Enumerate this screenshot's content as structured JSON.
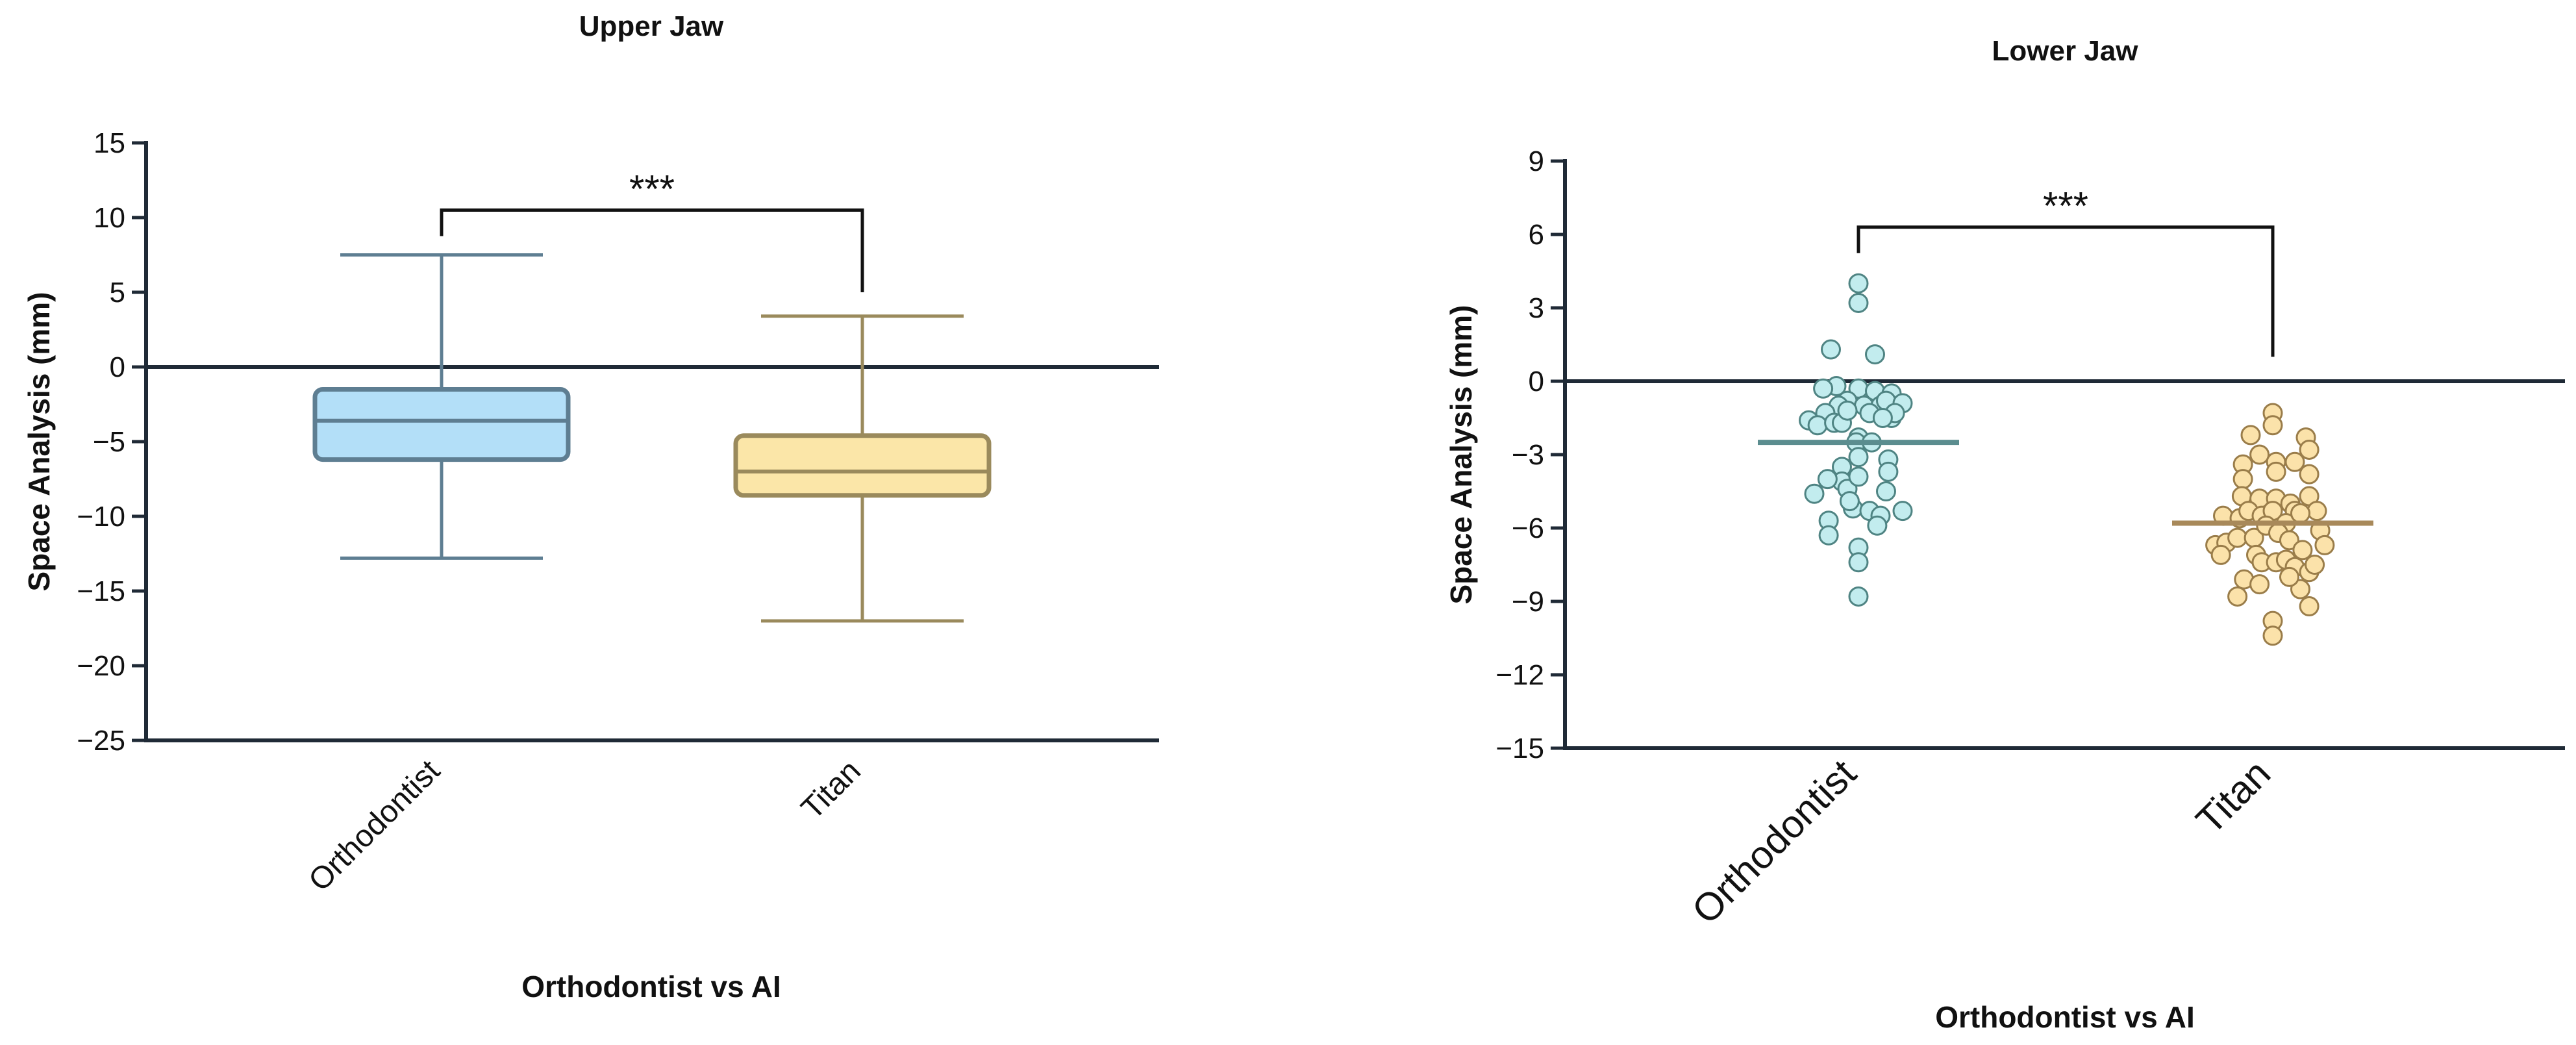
{
  "chart_data": [
    {
      "type": "box",
      "title": "Upper Jaw",
      "xlabel": "Orthodontist vs AI",
      "ylabel": "Space Analysis (mm)",
      "ylim": [
        -25,
        15
      ],
      "yticks": [
        15,
        10,
        5,
        0,
        -5,
        -10,
        -15,
        -20,
        -25
      ],
      "ytick_labels": [
        "15",
        "10",
        "5",
        "0",
        "−5",
        "−10",
        "−15",
        "−20",
        "−25"
      ],
      "categories": [
        "Orthodontist",
        "Titan"
      ],
      "boxes": [
        {
          "name": "Orthodontist",
          "min": -12.8,
          "q1": -6.2,
          "median": -3.6,
          "q3": -1.5,
          "max": 7.5,
          "fill": "#b3dff8",
          "stroke": "#5e7e92"
        },
        {
          "name": "Titan",
          "min": -17.0,
          "q1": -8.6,
          "median": -7.0,
          "q3": -4.6,
          "max": 3.4,
          "fill": "#fbe6a8",
          "stroke": "#9a8a5c"
        }
      ],
      "significance": {
        "label": "***",
        "left_y": 10.5,
        "right_y": 5,
        "top_y": 10.5
      }
    },
    {
      "type": "scatter",
      "title": "Lower Jaw",
      "xlabel": "Orthodontist vs AI",
      "ylabel": "Space Analysis (mm)",
      "ylim": [
        -15,
        9
      ],
      "yticks": [
        9,
        6,
        3,
        0,
        -3,
        -6,
        -9,
        -12,
        -15
      ],
      "ytick_labels": [
        "9",
        "6",
        "3",
        "0",
        "−3",
        "−6",
        "−9",
        "−12",
        "−15"
      ],
      "categories": [
        "Orthodontist",
        "Titan"
      ],
      "series": [
        {
          "name": "Orthodontist",
          "mean": -2.5,
          "fill": "#c2ecee",
          "stroke": "#4f8483",
          "line_color": "#5b8d8f",
          "points": [
            [
              0.0,
              4.0
            ],
            [
              0.0,
              3.2
            ],
            [
              -0.25,
              1.3
            ],
            [
              0.15,
              1.1
            ],
            [
              -0.2,
              -0.2
            ],
            [
              -0.32,
              -0.3
            ],
            [
              0.0,
              -0.3
            ],
            [
              0.15,
              -0.4
            ],
            [
              0.3,
              -0.5
            ],
            [
              -0.1,
              -0.8
            ],
            [
              0.05,
              -1.0
            ],
            [
              0.2,
              -1.0
            ],
            [
              0.25,
              -0.8
            ],
            [
              0.4,
              -0.9
            ],
            [
              -0.18,
              -1.0
            ],
            [
              -0.3,
              -1.3
            ],
            [
              -0.45,
              -1.6
            ],
            [
              -0.37,
              -1.8
            ],
            [
              -0.22,
              -1.7
            ],
            [
              -0.15,
              -1.7
            ],
            [
              -0.1,
              -1.2
            ],
            [
              0.1,
              -1.3
            ],
            [
              0.3,
              -1.5
            ],
            [
              0.33,
              -1.3
            ],
            [
              0.22,
              -1.5
            ],
            [
              0.0,
              -2.3
            ],
            [
              -0.02,
              -2.5
            ],
            [
              0.12,
              -2.5
            ],
            [
              -0.15,
              -3.5
            ],
            [
              0.0,
              -3.1
            ],
            [
              0.27,
              -3.2
            ],
            [
              0.27,
              -3.7
            ],
            [
              -0.15,
              -4.1
            ],
            [
              -0.28,
              -4.0
            ],
            [
              -0.4,
              -4.6
            ],
            [
              -0.1,
              -4.4
            ],
            [
              0.0,
              -3.9
            ],
            [
              -0.05,
              -5.2
            ],
            [
              0.1,
              -5.3
            ],
            [
              0.2,
              -5.5
            ],
            [
              0.25,
              -4.5
            ],
            [
              0.4,
              -5.3
            ],
            [
              0.17,
              -5.9
            ],
            [
              -0.08,
              -4.9
            ],
            [
              -0.27,
              -5.7
            ],
            [
              -0.27,
              -6.3
            ],
            [
              0.0,
              -6.8
            ],
            [
              0.0,
              -7.4
            ],
            [
              0.0,
              -8.8
            ]
          ]
        },
        {
          "name": "Titan",
          "mean": -5.8,
          "fill": "#fbe2aa",
          "stroke": "#9a7d4a",
          "line_color": "#a8895a",
          "points": [
            [
              0.0,
              -1.3
            ],
            [
              0.0,
              -1.8
            ],
            [
              -0.2,
              -2.2
            ],
            [
              0.3,
              -2.3
            ],
            [
              0.33,
              -2.8
            ],
            [
              -0.27,
              -3.4
            ],
            [
              -0.27,
              -4.0
            ],
            [
              -0.12,
              -3.0
            ],
            [
              0.03,
              -3.3
            ],
            [
              0.03,
              -3.7
            ],
            [
              0.2,
              -3.3
            ],
            [
              0.33,
              -3.8
            ],
            [
              -0.28,
              -4.7
            ],
            [
              -0.12,
              -4.8
            ],
            [
              0.03,
              -4.8
            ],
            [
              0.16,
              -5.0
            ],
            [
              0.2,
              -5.3
            ],
            [
              0.33,
              -4.7
            ],
            [
              0.4,
              -5.3
            ],
            [
              -0.45,
              -5.5
            ],
            [
              -0.3,
              -5.6
            ],
            [
              -0.22,
              -5.3
            ],
            [
              -0.1,
              -5.5
            ],
            [
              0.0,
              -5.3
            ],
            [
              0.12,
              -5.8
            ],
            [
              0.25,
              -5.4
            ],
            [
              0.43,
              -6.1
            ],
            [
              -0.52,
              -6.7
            ],
            [
              -0.42,
              -6.6
            ],
            [
              -0.32,
              -6.4
            ],
            [
              -0.17,
              -6.4
            ],
            [
              -0.06,
              -5.9
            ],
            [
              0.05,
              -6.2
            ],
            [
              0.15,
              -6.5
            ],
            [
              0.27,
              -6.9
            ],
            [
              0.47,
              -6.7
            ],
            [
              -0.47,
              -7.1
            ],
            [
              -0.26,
              -8.1
            ],
            [
              -0.15,
              -7.1
            ],
            [
              -0.1,
              -7.4
            ],
            [
              0.03,
              -7.4
            ],
            [
              0.12,
              -7.3
            ],
            [
              0.2,
              -7.6
            ],
            [
              0.33,
              -7.8
            ],
            [
              0.38,
              -7.5
            ],
            [
              0.25,
              -8.5
            ],
            [
              -0.32,
              -8.8
            ],
            [
              -0.12,
              -8.3
            ],
            [
              0.15,
              -8.0
            ],
            [
              0.33,
              -9.2
            ],
            [
              0.0,
              -9.8
            ],
            [
              0.0,
              -10.4
            ]
          ]
        }
      ],
      "significance": {
        "label": "***",
        "left_y": 6.3,
        "right_y": 1.0,
        "top_y": 6.3
      }
    }
  ]
}
